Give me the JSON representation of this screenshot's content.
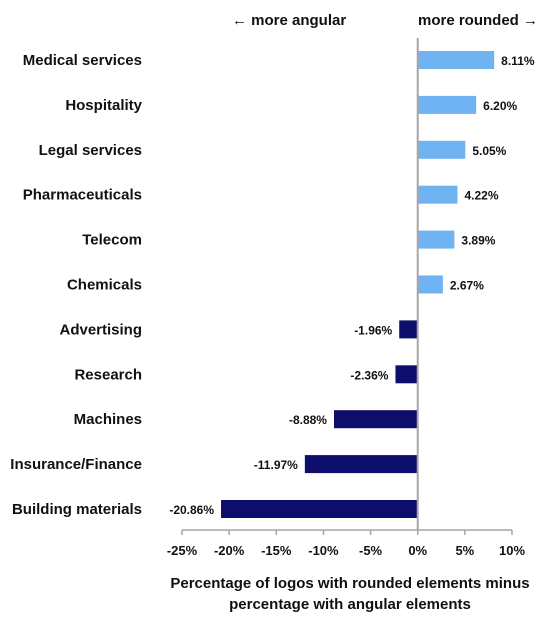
{
  "chart_data": {
    "type": "bar",
    "orientation": "horizontal",
    "categories": [
      "Medical services",
      "Hospitality",
      "Legal services",
      "Pharmaceuticals",
      "Telecom",
      "Chemicals",
      "Advertising",
      "Research",
      "Machines",
      "Insurance/Finance",
      "Building materials"
    ],
    "values": [
      8.11,
      6.2,
      5.05,
      4.22,
      3.89,
      2.67,
      -1.96,
      -2.36,
      -8.88,
      -11.97,
      -20.86
    ],
    "value_labels": [
      "8.11%",
      "6.20%",
      "5.05%",
      "4.22%",
      "3.89%",
      "2.67%",
      "-1.96%",
      "-2.36%",
      "-8.88%",
      "-11.97%",
      "-20.86%"
    ],
    "xlim": [
      -25,
      10
    ],
    "x_ticks": [
      -25,
      -20,
      -15,
      -10,
      -5,
      0,
      5,
      10
    ],
    "x_tick_labels": [
      "-25%",
      "-20%",
      "-15%",
      "-10%",
      "-5%",
      "0%",
      "5%",
      "10%"
    ],
    "xlabel_lines": [
      "Percentage of logos with rounded elements minus",
      "percentage with angular elements"
    ],
    "direction_left": "← more angular",
    "direction_right": "more rounded →",
    "grid": false,
    "colors": {
      "positive": "#6fb3f3",
      "negative": "#0d0d6b",
      "axis": "#a6a6a6"
    }
  }
}
